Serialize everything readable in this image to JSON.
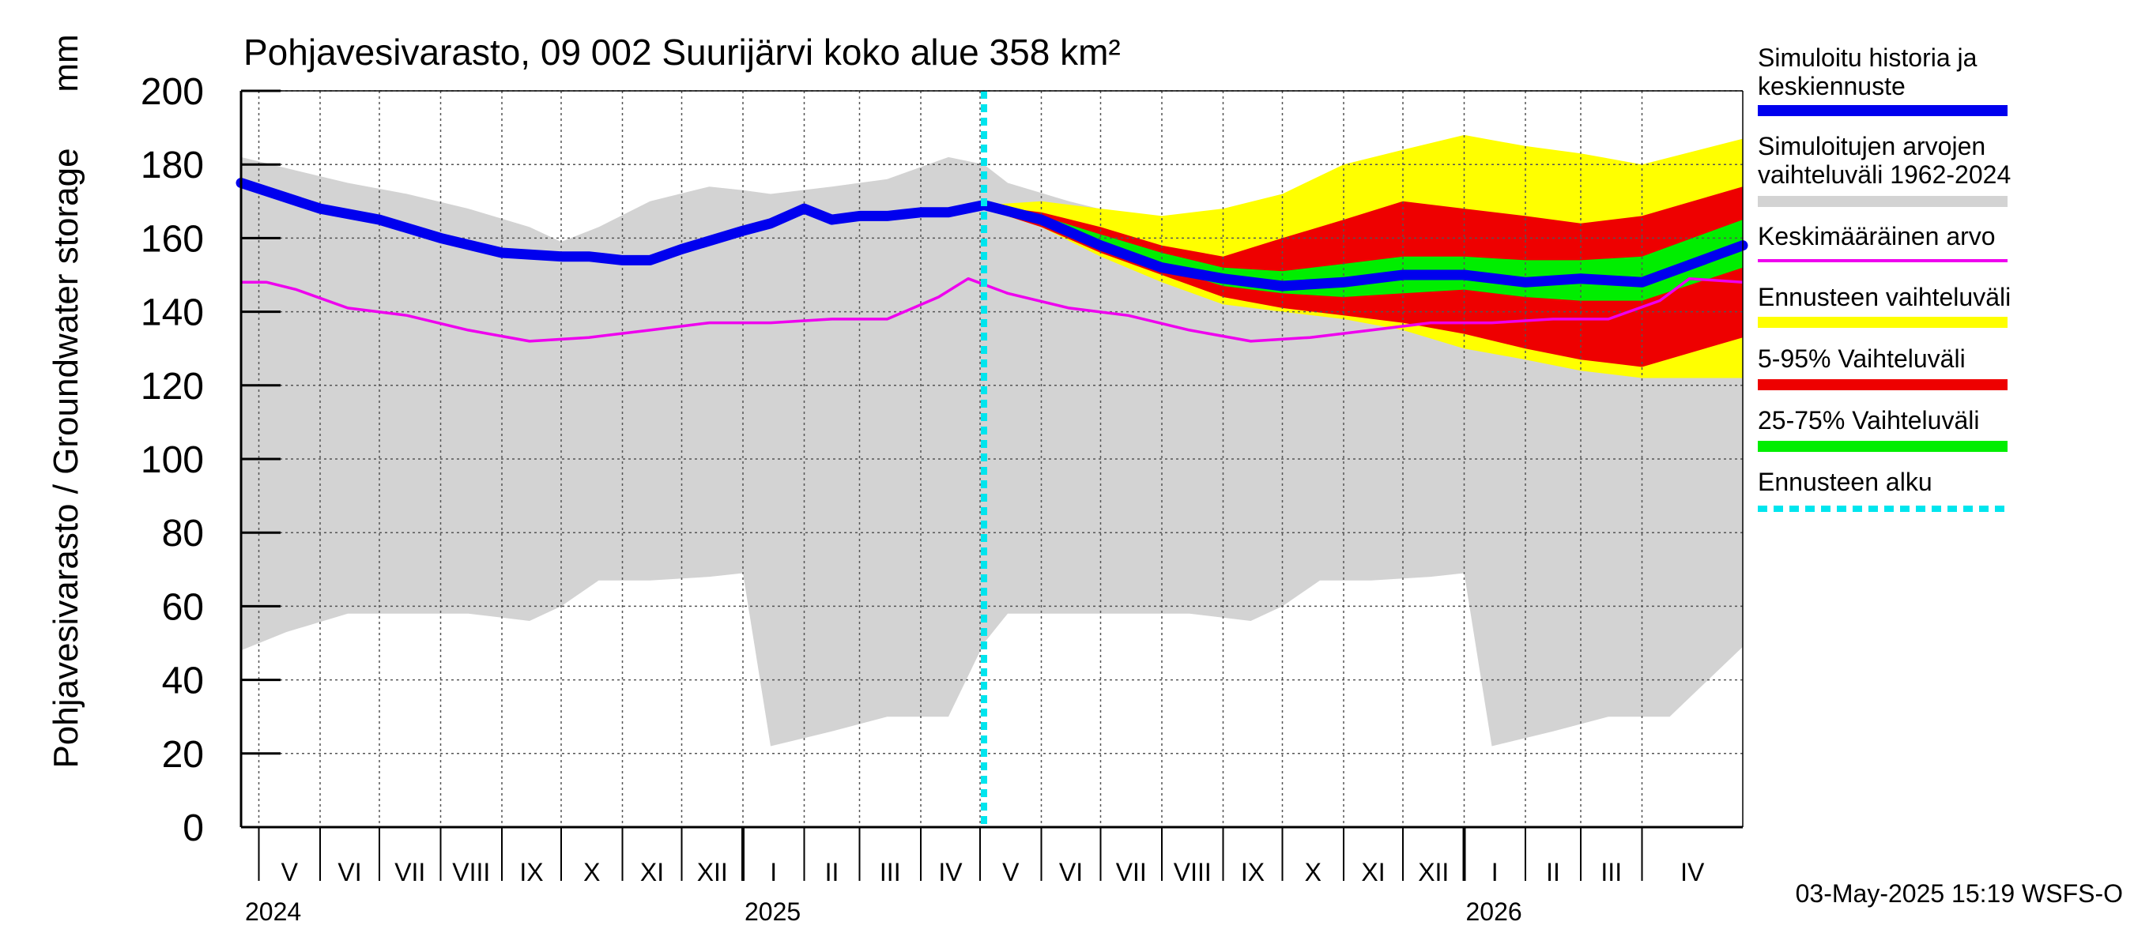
{
  "chart_data": {
    "type": "area",
    "title": "Pohjavesivarasto, 09 002 Suurijärvi koko alue 358 km²",
    "ylabel": "Pohjavesivarasto / Groundwater storage",
    "yunit": "mm",
    "ylim": [
      0,
      200
    ],
    "yticks": [
      0,
      20,
      40,
      60,
      80,
      100,
      120,
      140,
      160,
      180,
      200
    ],
    "grid": true,
    "legend_position": "right",
    "footer": "03-May-2025 15:19 WSFS-O",
    "forecast_start": "2025-05-03",
    "x_range": [
      "2024-04-22",
      "2026-05-22"
    ],
    "months": [
      {
        "label": "V",
        "start": "2024-05-01"
      },
      {
        "label": "VI",
        "start": "2024-06-01"
      },
      {
        "label": "VII",
        "start": "2024-07-01"
      },
      {
        "label": "VIII",
        "start": "2024-08-01"
      },
      {
        "label": "IX",
        "start": "2024-09-01"
      },
      {
        "label": "X",
        "start": "2024-10-01"
      },
      {
        "label": "XI",
        "start": "2024-11-01"
      },
      {
        "label": "XII",
        "start": "2024-12-01"
      },
      {
        "label": "I",
        "start": "2025-01-01"
      },
      {
        "label": "II",
        "start": "2025-02-01"
      },
      {
        "label": "III",
        "start": "2025-03-01"
      },
      {
        "label": "IV",
        "start": "2025-04-01"
      },
      {
        "label": "V",
        "start": "2025-05-01"
      },
      {
        "label": "VI",
        "start": "2025-06-01"
      },
      {
        "label": "VII",
        "start": "2025-07-01"
      },
      {
        "label": "VIII",
        "start": "2025-08-01"
      },
      {
        "label": "IX",
        "start": "2025-09-01"
      },
      {
        "label": "X",
        "start": "2025-10-01"
      },
      {
        "label": "XI",
        "start": "2025-11-01"
      },
      {
        "label": "XII",
        "start": "2025-12-01"
      },
      {
        "label": "I",
        "start": "2026-01-01"
      },
      {
        "label": "II",
        "start": "2026-02-01"
      },
      {
        "label": "III",
        "start": "2026-03-01"
      },
      {
        "label": "IV",
        "start": "2026-04-01"
      }
    ],
    "years": [
      {
        "label": "2024",
        "start": "2024-05-01"
      },
      {
        "label": "2025",
        "start": "2025-01-01"
      },
      {
        "label": "2026",
        "start": "2026-01-01"
      }
    ],
    "legend": [
      {
        "label": "Simuloitu historia ja keskiennuste",
        "color": "#0000ee",
        "style": "thick"
      },
      {
        "label": "Simuloitujen arvojen vaihteluväli 1962-2024",
        "color": "#d3d3d3",
        "style": "thick"
      },
      {
        "label": "Keskimääräinen arvo",
        "color": "#ee00ee",
        "style": "thin"
      },
      {
        "label": "Ennusteen vaihteluväli",
        "color": "#ffff00",
        "style": "thick"
      },
      {
        "label": "5-95% Vaihteluväli",
        "color": "#ee0000",
        "style": "thick"
      },
      {
        "label": "25-75% Vaihteluväli",
        "color": "#00ee00",
        "style": "thick"
      },
      {
        "label": "Ennusteen alku",
        "color": "#00e5ee",
        "style": "dashed"
      }
    ],
    "series": [
      {
        "key": "range_hist",
        "color": "#d3d3d3",
        "x": [
          "2024-04-22",
          "2024-05-15",
          "2024-06-15",
          "2024-07-15",
          "2024-08-15",
          "2024-09-15",
          "2024-10-01",
          "2024-10-20",
          "2024-11-15",
          "2024-12-15",
          "2025-01-01",
          "2025-01-15",
          "2025-02-15",
          "2025-03-15",
          "2025-04-15",
          "2025-05-03",
          "2025-05-15",
          "2025-06-15",
          "2025-07-15",
          "2025-08-15",
          "2025-09-15",
          "2025-10-01",
          "2025-10-20",
          "2025-11-15",
          "2025-12-15",
          "2026-01-01",
          "2026-01-15",
          "2026-02-15",
          "2026-03-15",
          "2026-04-15",
          "2026-05-22"
        ],
        "upper": [
          182,
          179,
          175,
          172,
          168,
          163,
          159,
          163,
          170,
          174,
          173,
          172,
          174,
          176,
          182,
          180,
          175,
          170,
          166,
          165,
          162,
          160,
          163,
          170,
          174,
          173,
          172,
          174,
          176,
          178,
          182
        ],
        "lower": [
          48,
          53,
          58,
          58,
          58,
          56,
          60,
          67,
          67,
          68,
          69,
          22,
          26,
          30,
          30,
          50,
          58,
          58,
          58,
          58,
          56,
          60,
          67,
          67,
          68,
          69,
          22,
          26,
          30,
          30,
          49
        ]
      },
      {
        "key": "ennuste_range",
        "color": "#ffff00",
        "x": [
          "2025-05-03",
          "2025-06-01",
          "2025-07-01",
          "2025-08-01",
          "2025-09-01",
          "2025-10-01",
          "2025-11-01",
          "2025-12-01",
          "2026-01-01",
          "2026-02-01",
          "2026-03-01",
          "2026-04-01",
          "2026-05-22"
        ],
        "upper": [
          169,
          170,
          168,
          166,
          168,
          172,
          180,
          184,
          188,
          185,
          183,
          180,
          187
        ],
        "lower": [
          168,
          163,
          155,
          148,
          142,
          140,
          138,
          135,
          130,
          127,
          124,
          122,
          122
        ]
      },
      {
        "key": "p5_95",
        "color": "#ee0000",
        "x": [
          "2025-05-03",
          "2025-06-01",
          "2025-07-01",
          "2025-08-01",
          "2025-09-01",
          "2025-10-01",
          "2025-11-01",
          "2025-12-01",
          "2026-01-01",
          "2026-02-01",
          "2026-03-01",
          "2026-04-01",
          "2026-05-22"
        ],
        "upper": [
          169,
          167,
          163,
          158,
          155,
          160,
          165,
          170,
          168,
          166,
          164,
          166,
          174
        ],
        "lower": [
          168,
          163,
          156,
          150,
          144,
          141,
          139,
          137,
          134,
          130,
          127,
          125,
          133
        ]
      },
      {
        "key": "p25_75",
        "color": "#00ee00",
        "x": [
          "2025-05-03",
          "2025-06-01",
          "2025-07-01",
          "2025-08-01",
          "2025-09-01",
          "2025-10-01",
          "2025-11-01",
          "2025-12-01",
          "2026-01-01",
          "2026-02-01",
          "2026-03-01",
          "2026-04-01",
          "2026-05-22"
        ],
        "upper": [
          169,
          166,
          161,
          156,
          152,
          151,
          153,
          155,
          155,
          154,
          154,
          155,
          165
        ],
        "lower": [
          168,
          165,
          158,
          152,
          147,
          145,
          144,
          145,
          146,
          144,
          143,
          143,
          152
        ]
      },
      {
        "key": "mean_hist",
        "color": "#ee00ee",
        "x": [
          "2024-04-22",
          "2024-05-05",
          "2024-05-20",
          "2024-06-15",
          "2024-07-15",
          "2024-08-15",
          "2024-09-15",
          "2024-10-15",
          "2024-11-15",
          "2024-12-15",
          "2025-01-15",
          "2025-02-15",
          "2025-03-15",
          "2025-04-10",
          "2025-04-25",
          "2025-05-15",
          "2025-06-15",
          "2025-07-15",
          "2025-08-15",
          "2025-09-15",
          "2025-10-15",
          "2025-11-15",
          "2025-12-15",
          "2026-01-15",
          "2026-02-15",
          "2026-03-15",
          "2026-04-10",
          "2026-04-25",
          "2026-05-22"
        ],
        "values": [
          148,
          148,
          146,
          141,
          139,
          135,
          132,
          133,
          135,
          137,
          137,
          138,
          138,
          144,
          149,
          145,
          141,
          139,
          135,
          132,
          133,
          135,
          137,
          137,
          138,
          138,
          143,
          149,
          148
        ]
      },
      {
        "key": "simuloitu",
        "color": "#0000ee",
        "x": [
          "2024-04-22",
          "2024-06-01",
          "2024-07-01",
          "2024-08-01",
          "2024-09-01",
          "2024-10-01",
          "2024-10-15",
          "2024-11-01",
          "2024-11-15",
          "2024-12-01",
          "2025-01-01",
          "2025-01-15",
          "2025-02-01",
          "2025-02-15",
          "2025-03-01",
          "2025-03-15",
          "2025-04-01",
          "2025-04-15",
          "2025-05-03",
          "2025-06-01",
          "2025-07-01",
          "2025-08-01",
          "2025-09-01",
          "2025-10-01",
          "2025-11-01",
          "2025-12-01",
          "2026-01-01",
          "2026-02-01",
          "2026-03-01",
          "2026-04-01",
          "2026-05-22"
        ],
        "values": [
          175,
          168,
          165,
          160,
          156,
          155,
          155,
          154,
          154,
          157,
          162,
          164,
          168,
          165,
          166,
          166,
          167,
          167,
          169,
          165,
          158,
          152,
          149,
          147,
          148,
          150,
          150,
          148,
          149,
          148,
          158
        ]
      }
    ]
  }
}
